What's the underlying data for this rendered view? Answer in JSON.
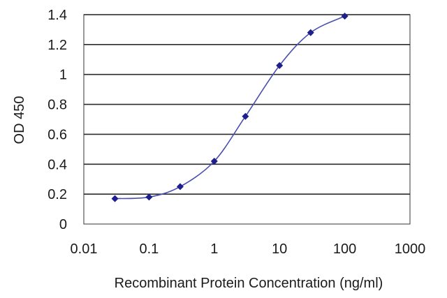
{
  "chart_data": {
    "type": "line",
    "title": "",
    "xlabel": "Recombinant Protein Concentration (ng/ml)",
    "ylabel": "OD 450",
    "xscale": "log",
    "xlim": [
      0.01,
      1000
    ],
    "ylim": [
      0,
      1.4
    ],
    "grid": "horizontal",
    "x_ticks": [
      "0.01",
      "0.1",
      "1",
      "10",
      "100",
      "1000"
    ],
    "y_ticks": [
      "0",
      "0.2",
      "0.4",
      "0.6",
      "0.8",
      "1",
      "1.2",
      "1.4"
    ],
    "series": [
      {
        "x": [
          0.03,
          0.1,
          0.3,
          1,
          3,
          10,
          30,
          100
        ],
        "y": [
          0.17,
          0.18,
          0.25,
          0.42,
          0.72,
          1.06,
          1.28,
          1.39
        ]
      }
    ],
    "colors": {
      "line": "#4a4fb0",
      "marker": "#1e1e8c"
    }
  }
}
